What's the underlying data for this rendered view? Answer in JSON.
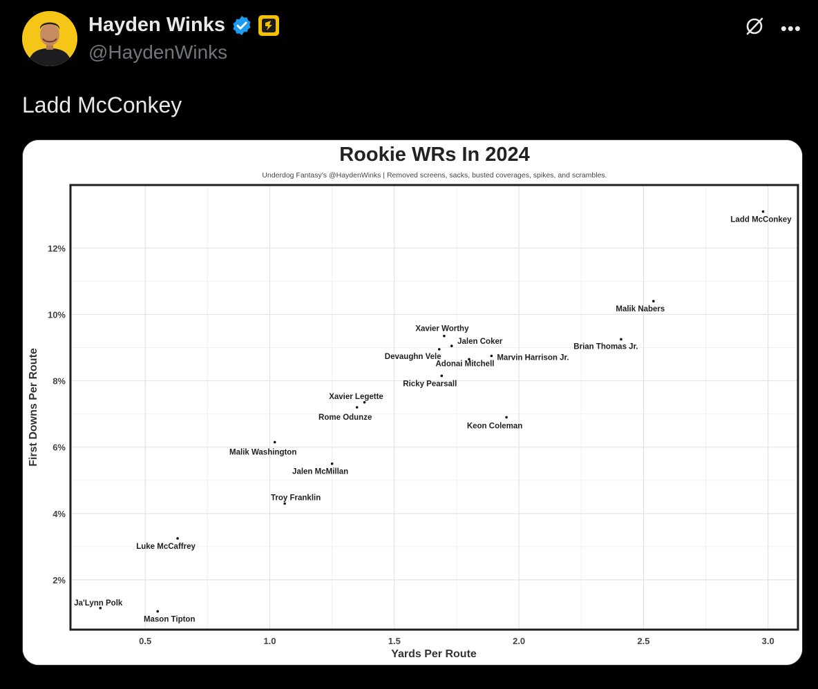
{
  "tweet": {
    "display_name": "Hayden Winks",
    "handle": "@HaydenWinks",
    "text": "Ladd McConkey",
    "icons": {
      "verified": "verified-badge-icon",
      "affiliate": "underdog-affiliate-icon",
      "grok": "grok-icon",
      "more": "more-icon"
    },
    "colors": {
      "verified_blue": "#1d9bf0",
      "affiliate_yellow": "#f2c200"
    }
  },
  "chart_data": {
    "type": "scatter",
    "title": "Rookie WRs In 2024",
    "subtitle": "Underdog Fantasy's @HaydenWinks | Removed screens, sacks, busted coverages, spikes, and scrambles.",
    "xlabel": "Yards Per Route",
    "ylabel": "First Downs Per Route",
    "xlim": [
      0.2,
      3.12
    ],
    "ylim": [
      0.5,
      13.9
    ],
    "xticks": [
      0.5,
      1.0,
      1.5,
      2.0,
      2.5,
      3.0
    ],
    "xtick_labels": [
      "0.5",
      "1.0",
      "1.5",
      "2.0",
      "2.5",
      "3.0"
    ],
    "yticks": [
      2,
      4,
      6,
      8,
      10,
      12
    ],
    "ytick_labels": [
      "2%",
      "4%",
      "6%",
      "8%",
      "10%",
      "12%"
    ],
    "grid": true,
    "points": [
      {
        "label": "Ladd McConkey",
        "x": 2.98,
        "y": 13.1
      },
      {
        "label": "Malik Nabers",
        "x": 2.54,
        "y": 10.4
      },
      {
        "label": "Brian Thomas Jr.",
        "x": 2.41,
        "y": 9.25
      },
      {
        "label": "Xavier Worthy",
        "x": 1.7,
        "y": 9.35
      },
      {
        "label": "Jalen Coker",
        "x": 1.73,
        "y": 9.05
      },
      {
        "label": "Devaughn Vele",
        "x": 1.68,
        "y": 8.95
      },
      {
        "label": "Adonai Mitchell",
        "x": 1.8,
        "y": 8.65
      },
      {
        "label": "Marvin Harrison Jr.",
        "x": 1.89,
        "y": 8.75
      },
      {
        "label": "Ricky Pearsall",
        "x": 1.69,
        "y": 8.15
      },
      {
        "label": "Xavier Legette",
        "x": 1.38,
        "y": 7.35
      },
      {
        "label": "Rome Odunze",
        "x": 1.35,
        "y": 7.2
      },
      {
        "label": "Keon Coleman",
        "x": 1.95,
        "y": 6.9
      },
      {
        "label": "Malik Washington",
        "x": 1.02,
        "y": 6.15
      },
      {
        "label": "Jalen McMillan",
        "x": 1.25,
        "y": 5.5
      },
      {
        "label": "Troy Franklin",
        "x": 1.06,
        "y": 4.3
      },
      {
        "label": "Luke McCaffrey",
        "x": 0.63,
        "y": 3.25
      },
      {
        "label": "Ja'Lynn Polk",
        "x": 0.32,
        "y": 1.15
      },
      {
        "label": "Mason Tipton",
        "x": 0.55,
        "y": 1.05
      }
    ]
  }
}
